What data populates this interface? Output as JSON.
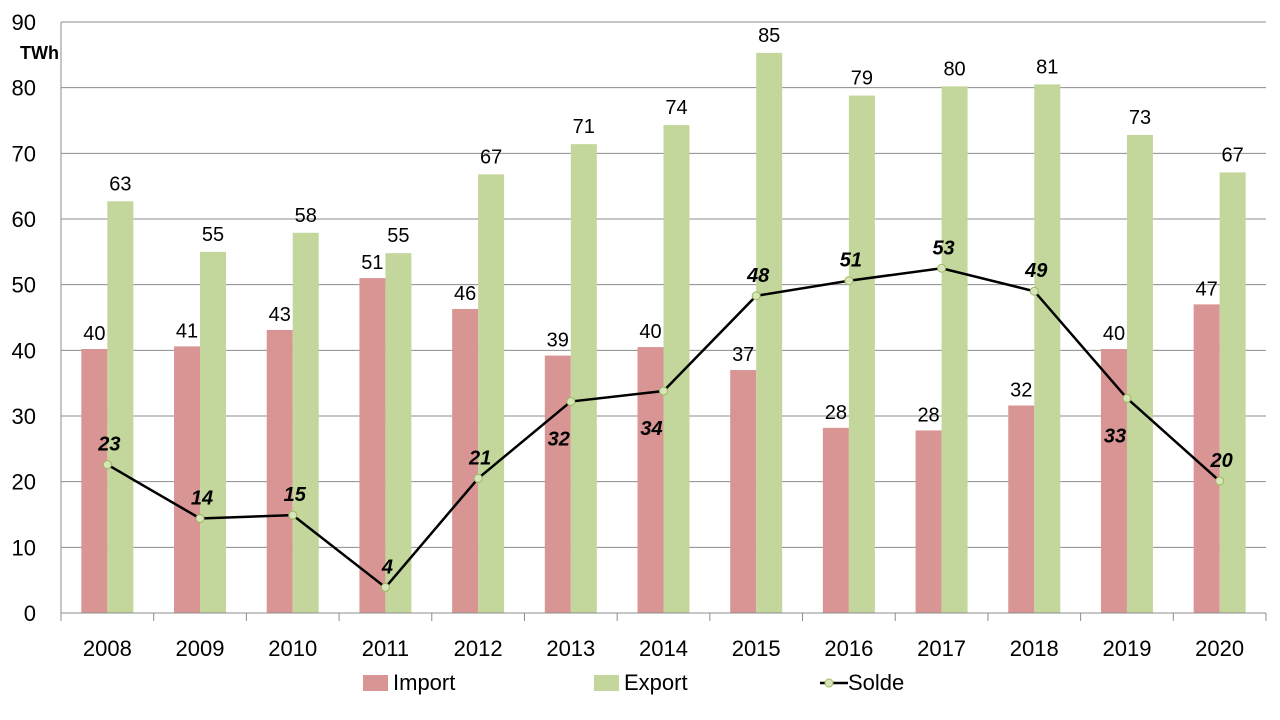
{
  "chart_data": {
    "type": "bar",
    "unit_label": "TWh",
    "categories": [
      "2008",
      "2009",
      "2010",
      "2011",
      "2012",
      "2013",
      "2014",
      "2015",
      "2016",
      "2017",
      "2018",
      "2019",
      "2020"
    ],
    "ylim": [
      0,
      90
    ],
    "y_ticks": [
      0,
      10,
      20,
      30,
      40,
      50,
      60,
      70,
      80,
      90
    ],
    "grid": true,
    "legend_position": "bottom",
    "series": [
      {
        "name": "Import",
        "type": "bar",
        "color": "#d99594",
        "values": [
          40.2,
          40.6,
          43.1,
          51.0,
          46.3,
          39.2,
          40.5,
          37.0,
          28.2,
          27.8,
          31.6,
          40.2,
          47.0
        ],
        "labels": [
          "40",
          "41",
          "43",
          "51",
          "46",
          "39",
          "40",
          "37",
          "28",
          "28",
          "32",
          "40",
          "47"
        ]
      },
      {
        "name": "Export",
        "type": "bar",
        "color": "#c3d69b",
        "values": [
          62.7,
          55.0,
          57.9,
          54.8,
          66.8,
          71.4,
          74.3,
          85.3,
          78.8,
          80.2,
          80.5,
          72.8,
          67.1
        ],
        "labels": [
          "63",
          "55",
          "58",
          "55",
          "67",
          "71",
          "74",
          "85",
          "79",
          "80",
          "81",
          "73",
          "67"
        ]
      },
      {
        "name": "Solde",
        "type": "line",
        "color": "#000000",
        "marker_color": "#d7e4bd",
        "values": [
          22.6,
          14.4,
          14.9,
          3.9,
          20.5,
          32.2,
          33.8,
          48.3,
          50.6,
          52.5,
          49.0,
          32.7,
          20.1
        ],
        "labels": [
          "23",
          "14",
          "15",
          "4",
          "21",
          "32",
          "34",
          "48",
          "51",
          "53",
          "49",
          "33",
          "20"
        ],
        "label_position": [
          "above",
          "above",
          "above",
          "above",
          "above",
          "below",
          "below",
          "above",
          "above",
          "above",
          "above",
          "below",
          "above"
        ]
      }
    ]
  }
}
